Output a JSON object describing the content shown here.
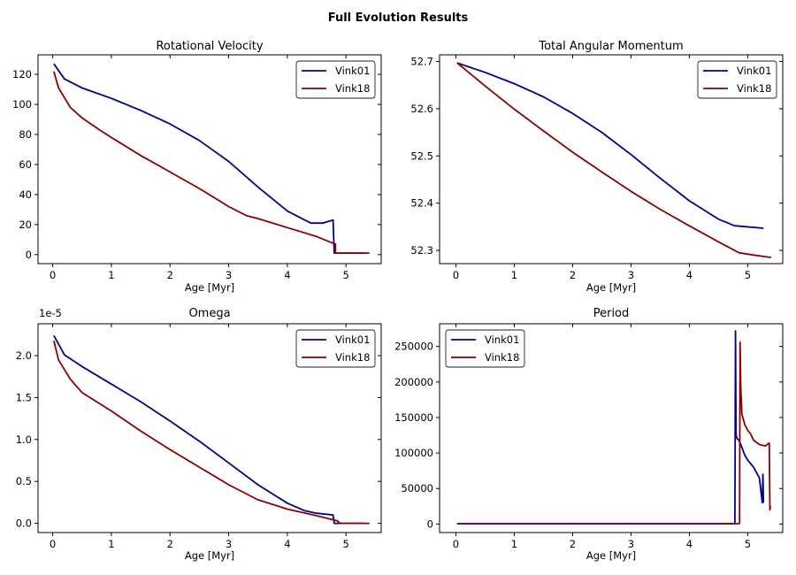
{
  "figure": {
    "title": "Full Evolution Results"
  },
  "chart_data": [
    {
      "type": "line",
      "title": "Rotational Velocity",
      "xlabel": "Age [Myr]",
      "ylabel": "",
      "xlim": [
        -0.25,
        5.6
      ],
      "ylim": [
        -6,
        133
      ],
      "xticks": [
        0,
        1,
        2,
        3,
        4,
        5
      ],
      "xtick_labels": [
        "0",
        "1",
        "2",
        "3",
        "4",
        "5"
      ],
      "yticks": [
        0,
        20,
        40,
        60,
        80,
        100,
        120
      ],
      "ytick_labels": [
        "0",
        "20",
        "40",
        "60",
        "80",
        "100",
        "120"
      ],
      "offset_text": "",
      "legend": "top-right",
      "series": [
        {
          "name": "Vink01",
          "color": "#00008b",
          "x": [
            0.02,
            0.2,
            0.5,
            1.0,
            1.5,
            2.0,
            2.5,
            3.0,
            3.5,
            4.0,
            4.4,
            4.6,
            4.78,
            4.78,
            4.8,
            4.85,
            5.3
          ],
          "y": [
            127,
            117,
            111,
            104,
            96,
            87,
            76,
            62,
            45,
            29,
            21,
            21,
            23,
            23,
            1,
            1,
            1
          ]
        },
        {
          "name": "Vink18",
          "color": "#8b0000",
          "x": [
            0.02,
            0.1,
            0.3,
            0.5,
            0.8,
            1.0,
            1.5,
            2.0,
            2.5,
            3.0,
            3.3,
            3.5,
            4.0,
            4.5,
            4.75,
            4.82,
            4.82,
            4.9,
            5.4
          ],
          "y": [
            122,
            111,
            98,
            91,
            83,
            78,
            66,
            55,
            44,
            32,
            26,
            24,
            18,
            12,
            8,
            7,
            1,
            1,
            1
          ]
        }
      ]
    },
    {
      "type": "line",
      "title": "Total Angular Momentum",
      "xlabel": "Age [Myr]",
      "ylabel": "",
      "xlim": [
        -0.28,
        5.6
      ],
      "ylim": [
        52.272,
        52.714
      ],
      "xticks": [
        0,
        1,
        2,
        3,
        4,
        5
      ],
      "xtick_labels": [
        "0",
        "1",
        "2",
        "3",
        "4",
        "5"
      ],
      "yticks": [
        52.3,
        52.4,
        52.5,
        52.6,
        52.7
      ],
      "ytick_labels": [
        "52.3",
        "52.4",
        "52.5",
        "52.6",
        "52.7"
      ],
      "offset_text": "",
      "legend": "top-right",
      "series": [
        {
          "name": "Vink01",
          "color": "#00008b",
          "x": [
            0.02,
            0.5,
            1.0,
            1.5,
            2.0,
            2.5,
            3.0,
            3.5,
            4.0,
            4.5,
            4.78,
            4.8,
            5.27
          ],
          "y": [
            52.697,
            52.677,
            52.653,
            52.625,
            52.59,
            52.55,
            52.503,
            52.453,
            52.405,
            52.366,
            52.352,
            52.352,
            52.347
          ]
        },
        {
          "name": "Vink18",
          "color": "#8b0000",
          "x": [
            0.02,
            0.5,
            1.0,
            1.5,
            2.0,
            2.5,
            3.0,
            3.5,
            4.0,
            4.5,
            4.85,
            5.0,
            5.4
          ],
          "y": [
            52.697,
            52.648,
            52.599,
            52.553,
            52.508,
            52.466,
            52.425,
            52.387,
            52.352,
            52.318,
            52.295,
            52.292,
            52.285
          ]
        }
      ]
    },
    {
      "type": "line",
      "title": "Omega",
      "xlabel": "Age [Myr]",
      "ylabel": "",
      "xlim": [
        -0.25,
        5.6
      ],
      "ylim": [
        -0.11,
        2.38
      ],
      "xticks": [
        0,
        1,
        2,
        3,
        4,
        5
      ],
      "xtick_labels": [
        "0",
        "1",
        "2",
        "3",
        "4",
        "5"
      ],
      "yticks": [
        0.0,
        0.5,
        1.0,
        1.5,
        2.0
      ],
      "ytick_labels": [
        "0.0",
        "0.5",
        "1.0",
        "1.5",
        "2.0"
      ],
      "offset_text": "1e-5",
      "legend": "top-right",
      "series": [
        {
          "name": "Vink01",
          "color": "#00008b",
          "x": [
            0.02,
            0.2,
            0.5,
            1.0,
            1.5,
            2.0,
            2.5,
            3.0,
            3.5,
            4.0,
            4.3,
            4.5,
            4.78,
            4.78,
            4.8,
            5.3
          ],
          "y": [
            2.24,
            2.01,
            1.87,
            1.66,
            1.45,
            1.22,
            0.98,
            0.72,
            0.46,
            0.24,
            0.15,
            0.12,
            0.1,
            0.1,
            0.0,
            0.0
          ]
        },
        {
          "name": "Vink18",
          "color": "#8b0000",
          "x": [
            0.02,
            0.1,
            0.3,
            0.5,
            1.0,
            1.5,
            2.0,
            2.5,
            3.0,
            3.5,
            4.0,
            4.5,
            4.85,
            4.9,
            5.4
          ],
          "y": [
            2.18,
            1.95,
            1.72,
            1.56,
            1.34,
            1.1,
            0.88,
            0.67,
            0.46,
            0.28,
            0.17,
            0.09,
            0.03,
            0.0,
            0.0
          ]
        }
      ]
    },
    {
      "type": "line",
      "title": "Period",
      "xlabel": "Age [Myr]",
      "ylabel": "",
      "xlim": [
        -0.28,
        5.6
      ],
      "ylim": [
        -12000,
        282000
      ],
      "xticks": [
        0,
        1,
        2,
        3,
        4,
        5
      ],
      "xtick_labels": [
        "0",
        "1",
        "2",
        "3",
        "4",
        "5"
      ],
      "yticks": [
        0,
        50000,
        100000,
        150000,
        200000,
        250000
      ],
      "ytick_labels": [
        "0",
        "50000",
        "100000",
        "150000",
        "200000",
        "250000"
      ],
      "offset_text": "",
      "legend": "top-left",
      "series": [
        {
          "name": "Vink01",
          "color": "#00008b",
          "x": [
            0.02,
            4.7,
            4.78,
            4.79,
            4.8,
            4.82,
            4.85,
            4.9,
            4.95,
            5.0,
            5.1,
            5.2,
            5.25,
            5.26,
            5.27
          ],
          "y": [
            500,
            500,
            600,
            272000,
            125000,
            120000,
            118000,
            108000,
            97000,
            90000,
            80000,
            65000,
            30000,
            70000,
            30000
          ]
        },
        {
          "name": "Vink18",
          "color": "#8b0000",
          "x": [
            0.02,
            4.8,
            4.86,
            4.87,
            4.88,
            4.9,
            4.95,
            5.0,
            5.05,
            5.1,
            5.2,
            5.3,
            5.37,
            5.38,
            5.39
          ],
          "y": [
            500,
            500,
            600,
            256000,
            195000,
            155000,
            140000,
            132000,
            127000,
            118000,
            112000,
            110000,
            114000,
            20000,
            25000
          ]
        }
      ]
    }
  ]
}
